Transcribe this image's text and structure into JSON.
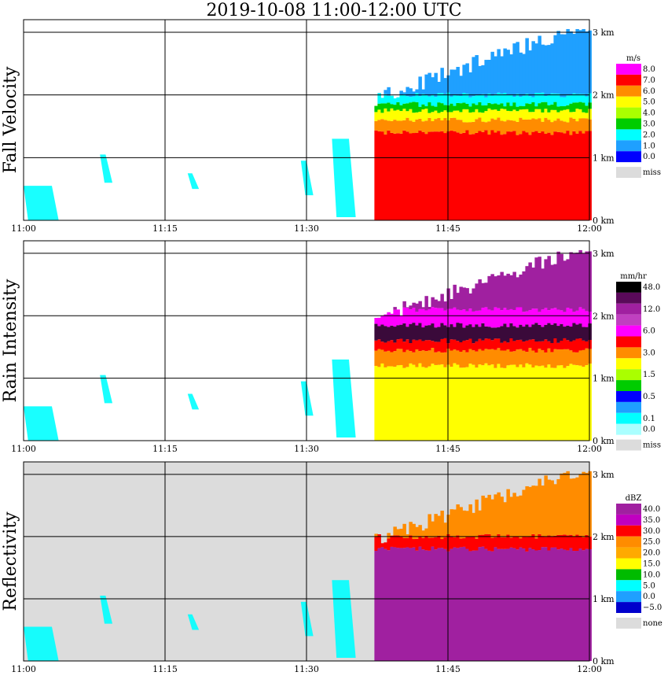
{
  "title": "2019-10-08   11:00-12:00 UTC",
  "colors": {
    "miss": "#dcdcdc",
    "grid": "#000000"
  },
  "chart_data": [
    {
      "type": "heatmap",
      "ylabel": "Fall Velocity",
      "unit": "m/s",
      "x_ticks": [
        "11:00",
        "11:15",
        "11:30",
        "11:45",
        "12:00"
      ],
      "y_ticks": [
        "0 km",
        "1 km",
        "2 km",
        "3 km"
      ],
      "ylim": [
        0,
        3.2
      ],
      "grid": true,
      "background": "#ffffff",
      "legend": {
        "labels": [
          "8.0",
          "7.0",
          "6.0",
          "5.0",
          "4.0",
          "3.0",
          "2.0",
          "1.0",
          "0.0",
          "miss"
        ],
        "colors": [
          "#ff00ff",
          "#ff0000",
          "#ff8c00",
          "#ffff00",
          "#aaff00",
          "#00cc00",
          "#00ffff",
          "#1fa0ff",
          "#0000ff",
          "#dcdcdc"
        ]
      },
      "layers": [
        {
          "top": 1.4,
          "color": "#ff0000"
        },
        {
          "top": 1.6,
          "color": "#ff8c00"
        },
        {
          "top": 1.75,
          "color": "#ffff00"
        },
        {
          "top": 1.85,
          "color": "#00cc00"
        },
        {
          "top": 2.0,
          "color": "#00ffff"
        },
        {
          "top": 3.05,
          "color": "#1fa0ff"
        }
      ]
    },
    {
      "type": "heatmap",
      "ylabel": "Rain Intensity",
      "unit": "mm/hr",
      "x_ticks": [
        "11:00",
        "11:15",
        "11:30",
        "11:45",
        "12:00"
      ],
      "y_ticks": [
        "0 km",
        "1 km",
        "2 km",
        "3 km"
      ],
      "ylim": [
        0,
        3.2
      ],
      "grid": true,
      "background": "#ffffff",
      "legend": {
        "labels": [
          "48.0",
          "",
          "12.0",
          "",
          "6.0",
          "",
          "3.0",
          "",
          "1.5",
          "",
          "0.5",
          "",
          "0.1",
          "0.0",
          "miss"
        ],
        "colors": [
          "#000000",
          "#5a0a5a",
          "#a020a0",
          "#c040c0",
          "#ff00ff",
          "#ff0000",
          "#ff8c00",
          "#ffff00",
          "#aaff00",
          "#00cc00",
          "#0000ff",
          "#1fa0ff",
          "#00ffff",
          "#aaffff",
          "#dcdcdc"
        ]
      },
      "layers": [
        {
          "top": 1.2,
          "color": "#ffff00"
        },
        {
          "top": 1.45,
          "color": "#ff8c00"
        },
        {
          "top": 1.6,
          "color": "#ff0000"
        },
        {
          "top": 1.85,
          "color": "#3a0a3a"
        },
        {
          "top": 2.1,
          "color": "#ff00ff"
        },
        {
          "top": 3.05,
          "color": "#a020a0"
        }
      ]
    },
    {
      "type": "heatmap",
      "ylabel": "Reflectivity",
      "unit": "dBZ",
      "x_ticks": [
        "11:00",
        "11:15",
        "11:30",
        "11:45",
        "12:00"
      ],
      "y_ticks": [
        "0 km",
        "1 km",
        "2 km",
        "3 km"
      ],
      "ylim": [
        0,
        3.2
      ],
      "grid": true,
      "background": "#dcdcdc",
      "legend": {
        "labels": [
          "40.0",
          "35.0",
          "30.0",
          "25.0",
          "20.0",
          "15.0",
          "10.0",
          "5.0",
          "0.0",
          "−5.0",
          "none"
        ],
        "colors": [
          "#a020a0",
          "#c000c0",
          "#ff0000",
          "#ff8c00",
          "#ffaa00",
          "#ffff00",
          "#00bb00",
          "#00ffff",
          "#1fa0ff",
          "#0000cc",
          "#dcdcdc"
        ]
      },
      "layers": [
        {
          "top": 1.8,
          "color": "#a020a0"
        },
        {
          "top": 2.0,
          "color": "#ff0000"
        },
        {
          "top": 3.05,
          "color": "#ff8c00"
        }
      ]
    }
  ]
}
